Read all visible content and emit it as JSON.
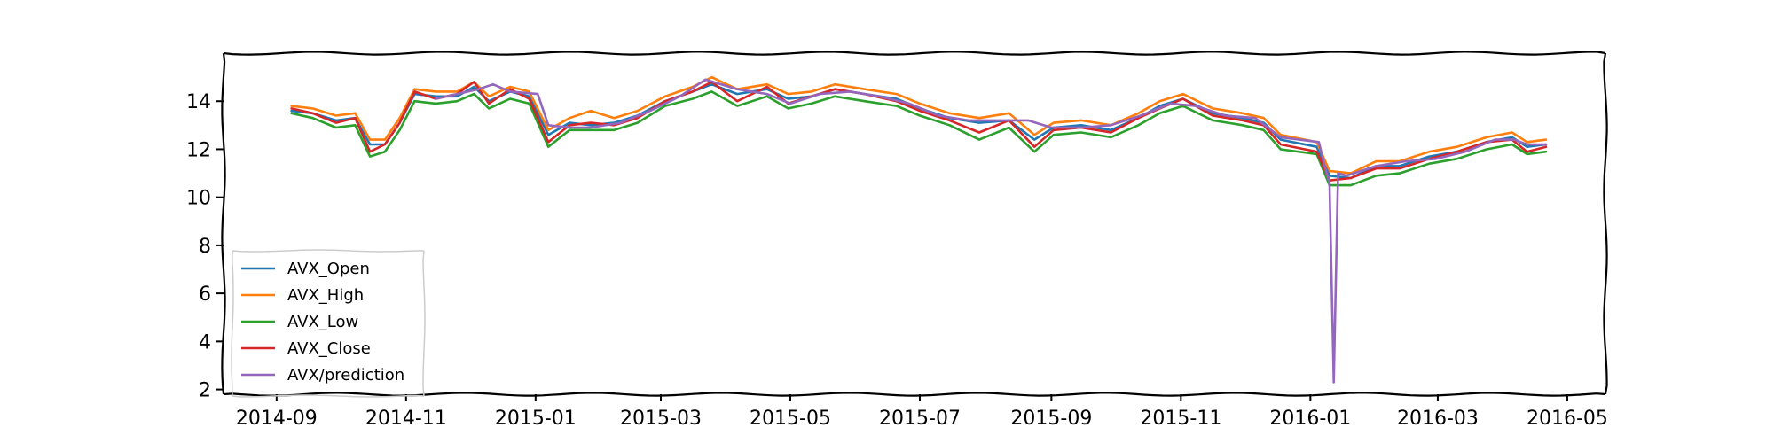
{
  "chart_data": {
    "type": "line",
    "title": "",
    "xlabel": "",
    "ylabel": "",
    "x_range": [
      "2014-08-07",
      "2016-05-19"
    ],
    "ylim": [
      1.8,
      16.0
    ],
    "x_ticks": [
      {
        "date": "2014-09-01",
        "label": "2014-09"
      },
      {
        "date": "2014-11-01",
        "label": "2014-11"
      },
      {
        "date": "2015-01-01",
        "label": "2015-01"
      },
      {
        "date": "2015-03-01",
        "label": "2015-03"
      },
      {
        "date": "2015-05-01",
        "label": "2015-05"
      },
      {
        "date": "2015-07-01",
        "label": "2015-07"
      },
      {
        "date": "2015-09-01",
        "label": "2015-09"
      },
      {
        "date": "2015-11-01",
        "label": "2015-11"
      },
      {
        "date": "2016-01-01",
        "label": "2016-01"
      },
      {
        "date": "2016-03-01",
        "label": "2016-03"
      },
      {
        "date": "2016-05-01",
        "label": "2016-05"
      }
    ],
    "y_ticks": [
      2,
      4,
      6,
      8,
      10,
      12,
      14
    ],
    "grid": false,
    "legend_position": "lower-left",
    "colors": {
      "AVX_Open": "#1f77b4",
      "AVX_High": "#ff7f0e",
      "AVX_Low": "#2ca02c",
      "AVX_Close": "#d62728",
      "AVX/prediction": "#9467bd"
    },
    "series": [
      {
        "name": "AVX_Open",
        "points": [
          [
            "2014-09-08",
            13.6
          ],
          [
            "2014-09-18",
            13.5
          ],
          [
            "2014-09-29",
            13.2
          ],
          [
            "2014-10-08",
            13.3
          ],
          [
            "2014-10-15",
            12.2
          ],
          [
            "2014-10-22",
            12.2
          ],
          [
            "2014-10-29",
            13.1
          ],
          [
            "2014-11-05",
            14.3
          ],
          [
            "2014-11-15",
            14.2
          ],
          [
            "2014-11-25",
            14.2
          ],
          [
            "2014-12-03",
            14.6
          ],
          [
            "2014-12-10",
            14.0
          ],
          [
            "2014-12-20",
            14.4
          ],
          [
            "2014-12-29",
            14.2
          ],
          [
            "2015-01-07",
            12.6
          ],
          [
            "2015-01-17",
            13.1
          ],
          [
            "2015-01-27",
            13.0
          ],
          [
            "2015-02-07",
            13.1
          ],
          [
            "2015-02-18",
            13.4
          ],
          [
            "2015-03-03",
            14.0
          ],
          [
            "2015-03-16",
            14.4
          ],
          [
            "2015-03-25",
            14.7
          ],
          [
            "2015-04-06",
            14.3
          ],
          [
            "2015-04-20",
            14.5
          ],
          [
            "2015-04-30",
            14.1
          ],
          [
            "2015-05-11",
            14.2
          ],
          [
            "2015-05-22",
            14.5
          ],
          [
            "2015-06-05",
            14.3
          ],
          [
            "2015-06-20",
            14.1
          ],
          [
            "2015-07-01",
            13.7
          ],
          [
            "2015-07-15",
            13.3
          ],
          [
            "2015-07-29",
            13.1
          ],
          [
            "2015-08-12",
            13.2
          ],
          [
            "2015-08-24",
            12.4
          ],
          [
            "2015-09-02",
            12.9
          ],
          [
            "2015-09-15",
            13.0
          ],
          [
            "2015-09-29",
            12.8
          ],
          [
            "2015-10-12",
            13.3
          ],
          [
            "2015-10-22",
            13.8
          ],
          [
            "2015-11-02",
            14.1
          ],
          [
            "2015-11-16",
            13.5
          ],
          [
            "2015-11-30",
            13.3
          ],
          [
            "2015-12-10",
            13.1
          ],
          [
            "2015-12-18",
            12.4
          ],
          [
            "2016-01-04",
            12.1
          ],
          [
            "2016-01-10",
            10.9
          ],
          [
            "2016-01-20",
            10.8
          ],
          [
            "2016-02-01",
            11.3
          ],
          [
            "2016-02-12",
            11.3
          ],
          [
            "2016-02-26",
            11.7
          ],
          [
            "2016-03-10",
            11.9
          ],
          [
            "2016-03-24",
            12.3
          ],
          [
            "2016-04-05",
            12.5
          ],
          [
            "2016-04-12",
            12.1
          ],
          [
            "2016-04-21",
            12.2
          ]
        ]
      },
      {
        "name": "AVX_High",
        "points": [
          [
            "2014-09-08",
            13.8
          ],
          [
            "2014-09-18",
            13.7
          ],
          [
            "2014-09-29",
            13.4
          ],
          [
            "2014-10-08",
            13.5
          ],
          [
            "2014-10-15",
            12.4
          ],
          [
            "2014-10-22",
            12.4
          ],
          [
            "2014-10-29",
            13.3
          ],
          [
            "2014-11-05",
            14.5
          ],
          [
            "2014-11-15",
            14.4
          ],
          [
            "2014-11-25",
            14.4
          ],
          [
            "2014-12-03",
            14.8
          ],
          [
            "2014-12-10",
            14.2
          ],
          [
            "2014-12-20",
            14.6
          ],
          [
            "2014-12-29",
            14.4
          ],
          [
            "2015-01-07",
            12.8
          ],
          [
            "2015-01-17",
            13.3
          ],
          [
            "2015-01-27",
            13.6
          ],
          [
            "2015-02-07",
            13.3
          ],
          [
            "2015-02-18",
            13.6
          ],
          [
            "2015-03-03",
            14.2
          ],
          [
            "2015-03-16",
            14.6
          ],
          [
            "2015-03-25",
            15.0
          ],
          [
            "2015-04-06",
            14.5
          ],
          [
            "2015-04-20",
            14.7
          ],
          [
            "2015-04-30",
            14.3
          ],
          [
            "2015-05-11",
            14.4
          ],
          [
            "2015-05-22",
            14.7
          ],
          [
            "2015-06-05",
            14.5
          ],
          [
            "2015-06-20",
            14.3
          ],
          [
            "2015-07-01",
            13.9
          ],
          [
            "2015-07-15",
            13.5
          ],
          [
            "2015-07-29",
            13.3
          ],
          [
            "2015-08-12",
            13.5
          ],
          [
            "2015-08-24",
            12.6
          ],
          [
            "2015-09-02",
            13.1
          ],
          [
            "2015-09-15",
            13.2
          ],
          [
            "2015-09-29",
            13.0
          ],
          [
            "2015-10-12",
            13.5
          ],
          [
            "2015-10-22",
            14.0
          ],
          [
            "2015-11-02",
            14.3
          ],
          [
            "2015-11-16",
            13.7
          ],
          [
            "2015-11-30",
            13.5
          ],
          [
            "2015-12-10",
            13.3
          ],
          [
            "2015-12-18",
            12.6
          ],
          [
            "2016-01-04",
            12.3
          ],
          [
            "2016-01-10",
            11.1
          ],
          [
            "2016-01-20",
            11.0
          ],
          [
            "2016-02-01",
            11.5
          ],
          [
            "2016-02-12",
            11.5
          ],
          [
            "2016-02-26",
            11.9
          ],
          [
            "2016-03-10",
            12.1
          ],
          [
            "2016-03-24",
            12.5
          ],
          [
            "2016-04-05",
            12.7
          ],
          [
            "2016-04-12",
            12.3
          ],
          [
            "2016-04-21",
            12.4
          ]
        ]
      },
      {
        "name": "AVX_Low",
        "points": [
          [
            "2014-09-08",
            13.5
          ],
          [
            "2014-09-18",
            13.3
          ],
          [
            "2014-09-29",
            12.9
          ],
          [
            "2014-10-08",
            13.0
          ],
          [
            "2014-10-15",
            11.7
          ],
          [
            "2014-10-22",
            11.9
          ],
          [
            "2014-10-29",
            12.8
          ],
          [
            "2014-11-05",
            14.0
          ],
          [
            "2014-11-15",
            13.9
          ],
          [
            "2014-11-25",
            14.0
          ],
          [
            "2014-12-03",
            14.3
          ],
          [
            "2014-12-10",
            13.7
          ],
          [
            "2014-12-20",
            14.1
          ],
          [
            "2014-12-29",
            13.9
          ],
          [
            "2015-01-07",
            12.1
          ],
          [
            "2015-01-17",
            12.8
          ],
          [
            "2015-01-27",
            12.8
          ],
          [
            "2015-02-07",
            12.8
          ],
          [
            "2015-02-18",
            13.1
          ],
          [
            "2015-03-03",
            13.8
          ],
          [
            "2015-03-16",
            14.1
          ],
          [
            "2015-03-25",
            14.4
          ],
          [
            "2015-04-06",
            13.8
          ],
          [
            "2015-04-20",
            14.2
          ],
          [
            "2015-04-30",
            13.7
          ],
          [
            "2015-05-11",
            13.9
          ],
          [
            "2015-05-22",
            14.2
          ],
          [
            "2015-06-05",
            14.0
          ],
          [
            "2015-06-20",
            13.8
          ],
          [
            "2015-07-01",
            13.4
          ],
          [
            "2015-07-15",
            13.0
          ],
          [
            "2015-07-29",
            12.4
          ],
          [
            "2015-08-12",
            12.9
          ],
          [
            "2015-08-24",
            11.9
          ],
          [
            "2015-09-02",
            12.6
          ],
          [
            "2015-09-15",
            12.7
          ],
          [
            "2015-09-29",
            12.5
          ],
          [
            "2015-10-12",
            13.0
          ],
          [
            "2015-10-22",
            13.5
          ],
          [
            "2015-11-02",
            13.8
          ],
          [
            "2015-11-16",
            13.2
          ],
          [
            "2015-11-30",
            13.0
          ],
          [
            "2015-12-10",
            12.8
          ],
          [
            "2015-12-18",
            12.0
          ],
          [
            "2016-01-04",
            11.8
          ],
          [
            "2016-01-10",
            10.5
          ],
          [
            "2016-01-20",
            10.5
          ],
          [
            "2016-02-01",
            10.9
          ],
          [
            "2016-02-12",
            11.0
          ],
          [
            "2016-02-26",
            11.4
          ],
          [
            "2016-03-10",
            11.6
          ],
          [
            "2016-03-24",
            12.0
          ],
          [
            "2016-04-05",
            12.2
          ],
          [
            "2016-04-12",
            11.8
          ],
          [
            "2016-04-21",
            11.9
          ]
        ]
      },
      {
        "name": "AVX_Close",
        "points": [
          [
            "2014-09-08",
            13.7
          ],
          [
            "2014-09-18",
            13.5
          ],
          [
            "2014-09-29",
            13.1
          ],
          [
            "2014-10-08",
            13.3
          ],
          [
            "2014-10-15",
            11.9
          ],
          [
            "2014-10-22",
            12.2
          ],
          [
            "2014-10-29",
            13.1
          ],
          [
            "2014-11-05",
            14.4
          ],
          [
            "2014-11-15",
            14.1
          ],
          [
            "2014-11-25",
            14.3
          ],
          [
            "2014-12-03",
            14.8
          ],
          [
            "2014-12-10",
            13.9
          ],
          [
            "2014-12-20",
            14.5
          ],
          [
            "2014-12-29",
            14.1
          ],
          [
            "2015-01-07",
            12.3
          ],
          [
            "2015-01-17",
            13.0
          ],
          [
            "2015-01-27",
            13.1
          ],
          [
            "2015-02-07",
            13.0
          ],
          [
            "2015-02-18",
            13.3
          ],
          [
            "2015-03-03",
            14.0
          ],
          [
            "2015-03-16",
            14.4
          ],
          [
            "2015-03-25",
            14.8
          ],
          [
            "2015-04-06",
            14.0
          ],
          [
            "2015-04-20",
            14.6
          ],
          [
            "2015-04-30",
            13.9
          ],
          [
            "2015-05-11",
            14.2
          ],
          [
            "2015-05-22",
            14.5
          ],
          [
            "2015-06-05",
            14.3
          ],
          [
            "2015-06-20",
            14.0
          ],
          [
            "2015-07-01",
            13.6
          ],
          [
            "2015-07-15",
            13.2
          ],
          [
            "2015-07-29",
            12.7
          ],
          [
            "2015-08-12",
            13.2
          ],
          [
            "2015-08-24",
            12.1
          ],
          [
            "2015-09-02",
            12.8
          ],
          [
            "2015-09-15",
            12.9
          ],
          [
            "2015-09-29",
            12.7
          ],
          [
            "2015-10-12",
            13.3
          ],
          [
            "2015-10-22",
            13.7
          ],
          [
            "2015-11-02",
            14.1
          ],
          [
            "2015-11-16",
            13.4
          ],
          [
            "2015-11-30",
            13.2
          ],
          [
            "2015-12-10",
            13.0
          ],
          [
            "2015-12-18",
            12.2
          ],
          [
            "2016-01-04",
            11.9
          ],
          [
            "2016-01-10",
            10.7
          ],
          [
            "2016-01-20",
            10.8
          ],
          [
            "2016-02-01",
            11.2
          ],
          [
            "2016-02-12",
            11.2
          ],
          [
            "2016-02-26",
            11.6
          ],
          [
            "2016-03-10",
            11.9
          ],
          [
            "2016-03-24",
            12.3
          ],
          [
            "2016-04-05",
            12.4
          ],
          [
            "2016-04-12",
            11.9
          ],
          [
            "2016-04-21",
            12.1
          ]
        ]
      },
      {
        "name": "AVX/prediction",
        "points": [
          [
            "2014-11-15",
            14.1
          ],
          [
            "2014-11-25",
            14.3
          ],
          [
            "2014-12-05",
            14.5
          ],
          [
            "2014-12-12",
            14.7
          ],
          [
            "2014-12-20",
            14.4
          ],
          [
            "2015-01-02",
            14.3
          ],
          [
            "2015-01-07",
            13.0
          ],
          [
            "2015-01-17",
            12.9
          ],
          [
            "2015-01-27",
            12.9
          ],
          [
            "2015-02-10",
            13.1
          ],
          [
            "2015-02-24",
            13.6
          ],
          [
            "2015-03-10",
            14.2
          ],
          [
            "2015-03-22",
            14.9
          ],
          [
            "2015-04-06",
            14.5
          ],
          [
            "2015-04-20",
            14.3
          ],
          [
            "2015-05-01",
            13.9
          ],
          [
            "2015-05-15",
            14.3
          ],
          [
            "2015-05-29",
            14.4
          ],
          [
            "2015-06-12",
            14.2
          ],
          [
            "2015-06-26",
            13.9
          ],
          [
            "2015-07-10",
            13.4
          ],
          [
            "2015-07-24",
            13.2
          ],
          [
            "2015-08-07",
            13.2
          ],
          [
            "2015-08-21",
            13.2
          ],
          [
            "2015-09-01",
            12.9
          ],
          [
            "2015-09-15",
            12.9
          ],
          [
            "2015-09-29",
            13.0
          ],
          [
            "2015-10-13",
            13.4
          ],
          [
            "2015-10-27",
            13.9
          ],
          [
            "2015-11-08",
            13.8
          ],
          [
            "2015-11-22",
            13.4
          ],
          [
            "2015-12-06",
            13.3
          ],
          [
            "2015-12-18",
            12.5
          ],
          [
            "2016-01-05",
            12.3
          ],
          [
            "2016-01-08",
            11.2
          ],
          [
            "2016-01-10",
            10.6
          ],
          [
            "2016-01-12",
            2.3
          ],
          [
            "2016-01-14",
            11.0
          ],
          [
            "2016-01-18",
            10.9
          ],
          [
            "2016-02-01",
            11.3
          ],
          [
            "2016-02-15",
            11.5
          ],
          [
            "2016-02-29",
            11.6
          ],
          [
            "2016-03-14",
            11.9
          ],
          [
            "2016-03-28",
            12.4
          ],
          [
            "2016-04-06",
            12.4
          ],
          [
            "2016-04-12",
            12.2
          ],
          [
            "2016-04-21",
            12.2
          ]
        ]
      }
    ]
  }
}
